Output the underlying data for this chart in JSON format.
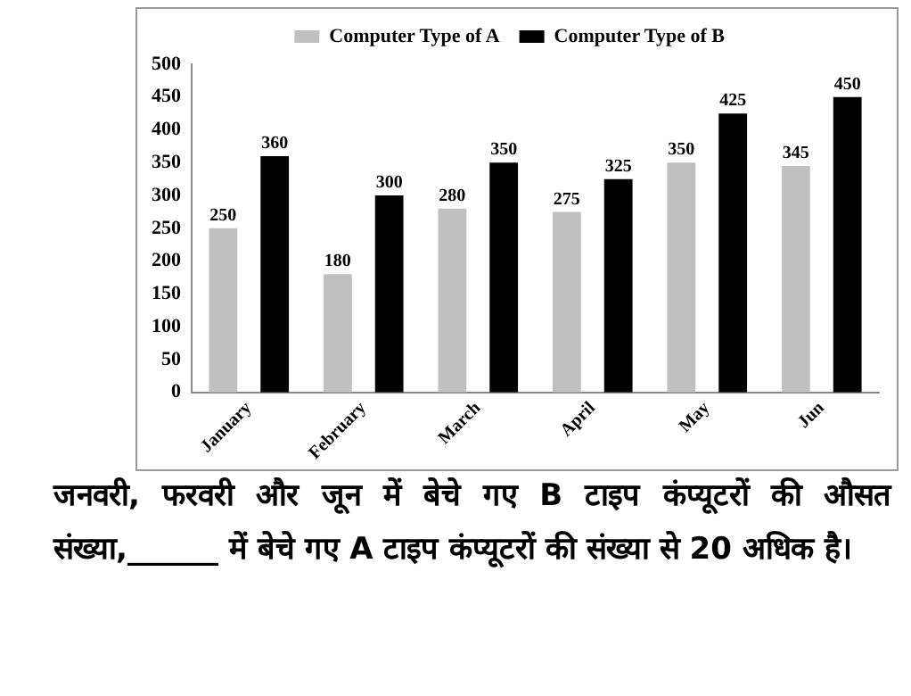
{
  "chart_data": {
    "type": "bar",
    "categories": [
      "January",
      "February",
      "March",
      "April",
      "May",
      "Jun"
    ],
    "series": [
      {
        "name": "Computer Type of A",
        "color": "#c0c0c0",
        "values": [
          250,
          180,
          280,
          275,
          350,
          345
        ]
      },
      {
        "name": "Computer Type of B",
        "color": "#000000",
        "values": [
          360,
          300,
          350,
          325,
          425,
          450
        ]
      }
    ],
    "ylim": [
      0,
      500
    ],
    "yticks": [
      0,
      50,
      100,
      150,
      200,
      250,
      300,
      350,
      400,
      450,
      500
    ],
    "grid": false,
    "legend": "top",
    "data_labels": true,
    "annotations": [
      "जनवरी, फरवरी और जून में बेचे गए B टाइप कंप्यूटरों की औसत संख्या,______ में बेचे गए A टाइप कंप्यूटरों की संख्या से 20 अधिक है।"
    ]
  }
}
